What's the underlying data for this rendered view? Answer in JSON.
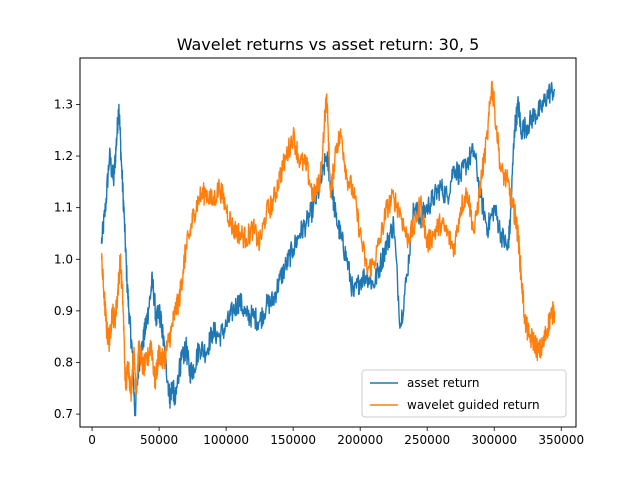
{
  "chart_data": {
    "type": "line",
    "title": "Wavelet returns vs asset return: 30, 5",
    "xlabel": "",
    "ylabel": "",
    "xlim": [
      -9000,
      361000
    ],
    "ylim": [
      0.675,
      1.39
    ],
    "x_ticks": [
      0,
      50000,
      100000,
      150000,
      200000,
      250000,
      300000,
      350000
    ],
    "y_ticks": [
      0.7,
      0.8,
      0.9,
      1.0,
      1.1,
      1.2,
      1.3
    ],
    "grid": false,
    "legend_position": "lower-right",
    "series": [
      {
        "name": "asset return",
        "color": "#1f77b4",
        "x": [
          7000,
          10000,
          13000,
          16000,
          18000,
          20000,
          22000,
          24000,
          26000,
          28000,
          30000,
          32000,
          35000,
          38000,
          40000,
          42000,
          45000,
          48000,
          50000,
          52000,
          55000,
          58000,
          60000,
          62000,
          65000,
          68000,
          70000,
          73000,
          76000,
          80000,
          85000,
          90000,
          95000,
          100000,
          105000,
          110000,
          115000,
          120000,
          125000,
          130000,
          135000,
          140000,
          145000,
          150000,
          155000,
          160000,
          165000,
          170000,
          175000,
          178000,
          182000,
          186000,
          190000,
          195000,
          200000,
          205000,
          210000,
          215000,
          220000,
          225000,
          230000,
          235000,
          240000,
          245000,
          250000,
          255000,
          260000,
          265000,
          270000,
          275000,
          280000,
          285000,
          290000,
          295000,
          300000,
          305000,
          310000,
          312000,
          315000,
          318000,
          320000,
          325000,
          330000,
          335000,
          340000,
          345000
        ],
        "values": [
          1.03,
          1.1,
          1.2,
          1.15,
          1.22,
          1.3,
          1.18,
          1.08,
          0.96,
          0.88,
          0.82,
          0.7,
          0.8,
          0.84,
          0.87,
          0.9,
          0.96,
          0.88,
          0.9,
          0.87,
          0.8,
          0.73,
          0.76,
          0.72,
          0.79,
          0.81,
          0.83,
          0.78,
          0.79,
          0.83,
          0.82,
          0.86,
          0.85,
          0.87,
          0.9,
          0.92,
          0.89,
          0.89,
          0.88,
          0.91,
          0.92,
          0.96,
          0.99,
          1.02,
          1.05,
          1.07,
          1.1,
          1.14,
          1.2,
          1.15,
          1.08,
          1.04,
          1.0,
          0.93,
          0.96,
          0.97,
          0.95,
          0.99,
          1.03,
          1.07,
          0.87,
          0.97,
          1.1,
          1.08,
          1.1,
          1.12,
          1.14,
          1.12,
          1.18,
          1.16,
          1.19,
          1.21,
          1.12,
          1.06,
          1.1,
          1.05,
          1.02,
          1.07,
          1.25,
          1.3,
          1.25,
          1.26,
          1.28,
          1.29,
          1.32,
          1.33
        ]
      },
      {
        "name": "wavelet guided return",
        "color": "#ff7f0e",
        "x": [
          7000,
          9000,
          11000,
          13000,
          15000,
          17000,
          19000,
          21000,
          23000,
          25000,
          27000,
          29000,
          31000,
          33000,
          35000,
          38000,
          41000,
          44000,
          47000,
          50000,
          53000,
          56000,
          59000,
          62000,
          65000,
          68000,
          70000,
          73000,
          76000,
          80000,
          85000,
          90000,
          95000,
          100000,
          105000,
          110000,
          115000,
          120000,
          125000,
          130000,
          135000,
          140000,
          145000,
          150000,
          155000,
          160000,
          165000,
          170000,
          175000,
          178000,
          182000,
          186000,
          190000,
          195000,
          200000,
          205000,
          210000,
          215000,
          220000,
          225000,
          230000,
          235000,
          240000,
          245000,
          250000,
          255000,
          260000,
          265000,
          270000,
          275000,
          280000,
          285000,
          290000,
          295000,
          298000,
          300000,
          305000,
          310000,
          314000,
          316000,
          318000,
          320000,
          323000,
          326000,
          330000,
          333000,
          336000,
          339000,
          342000,
          345000
        ],
        "values": [
          1.0,
          0.93,
          0.86,
          0.84,
          0.9,
          0.88,
          0.93,
          1.0,
          0.92,
          0.75,
          0.8,
          0.74,
          0.82,
          0.75,
          0.83,
          0.79,
          0.8,
          0.84,
          0.76,
          0.82,
          0.8,
          0.83,
          0.86,
          0.9,
          0.92,
          0.98,
          1.02,
          1.05,
          1.09,
          1.12,
          1.13,
          1.11,
          1.14,
          1.1,
          1.06,
          1.05,
          1.04,
          1.06,
          1.03,
          1.09,
          1.11,
          1.16,
          1.2,
          1.24,
          1.19,
          1.18,
          1.12,
          1.15,
          1.32,
          1.12,
          1.22,
          1.24,
          1.16,
          1.13,
          1.05,
          0.98,
          0.99,
          1.04,
          1.1,
          1.12,
          1.09,
          1.04,
          1.06,
          1.11,
          1.03,
          1.05,
          1.07,
          1.05,
          1.02,
          1.1,
          1.13,
          1.05,
          1.15,
          1.24,
          1.34,
          1.3,
          1.17,
          1.15,
          1.1,
          1.08,
          1.04,
          0.97,
          0.88,
          0.85,
          0.84,
          0.82,
          0.83,
          0.86,
          0.89,
          0.9
        ]
      }
    ]
  }
}
